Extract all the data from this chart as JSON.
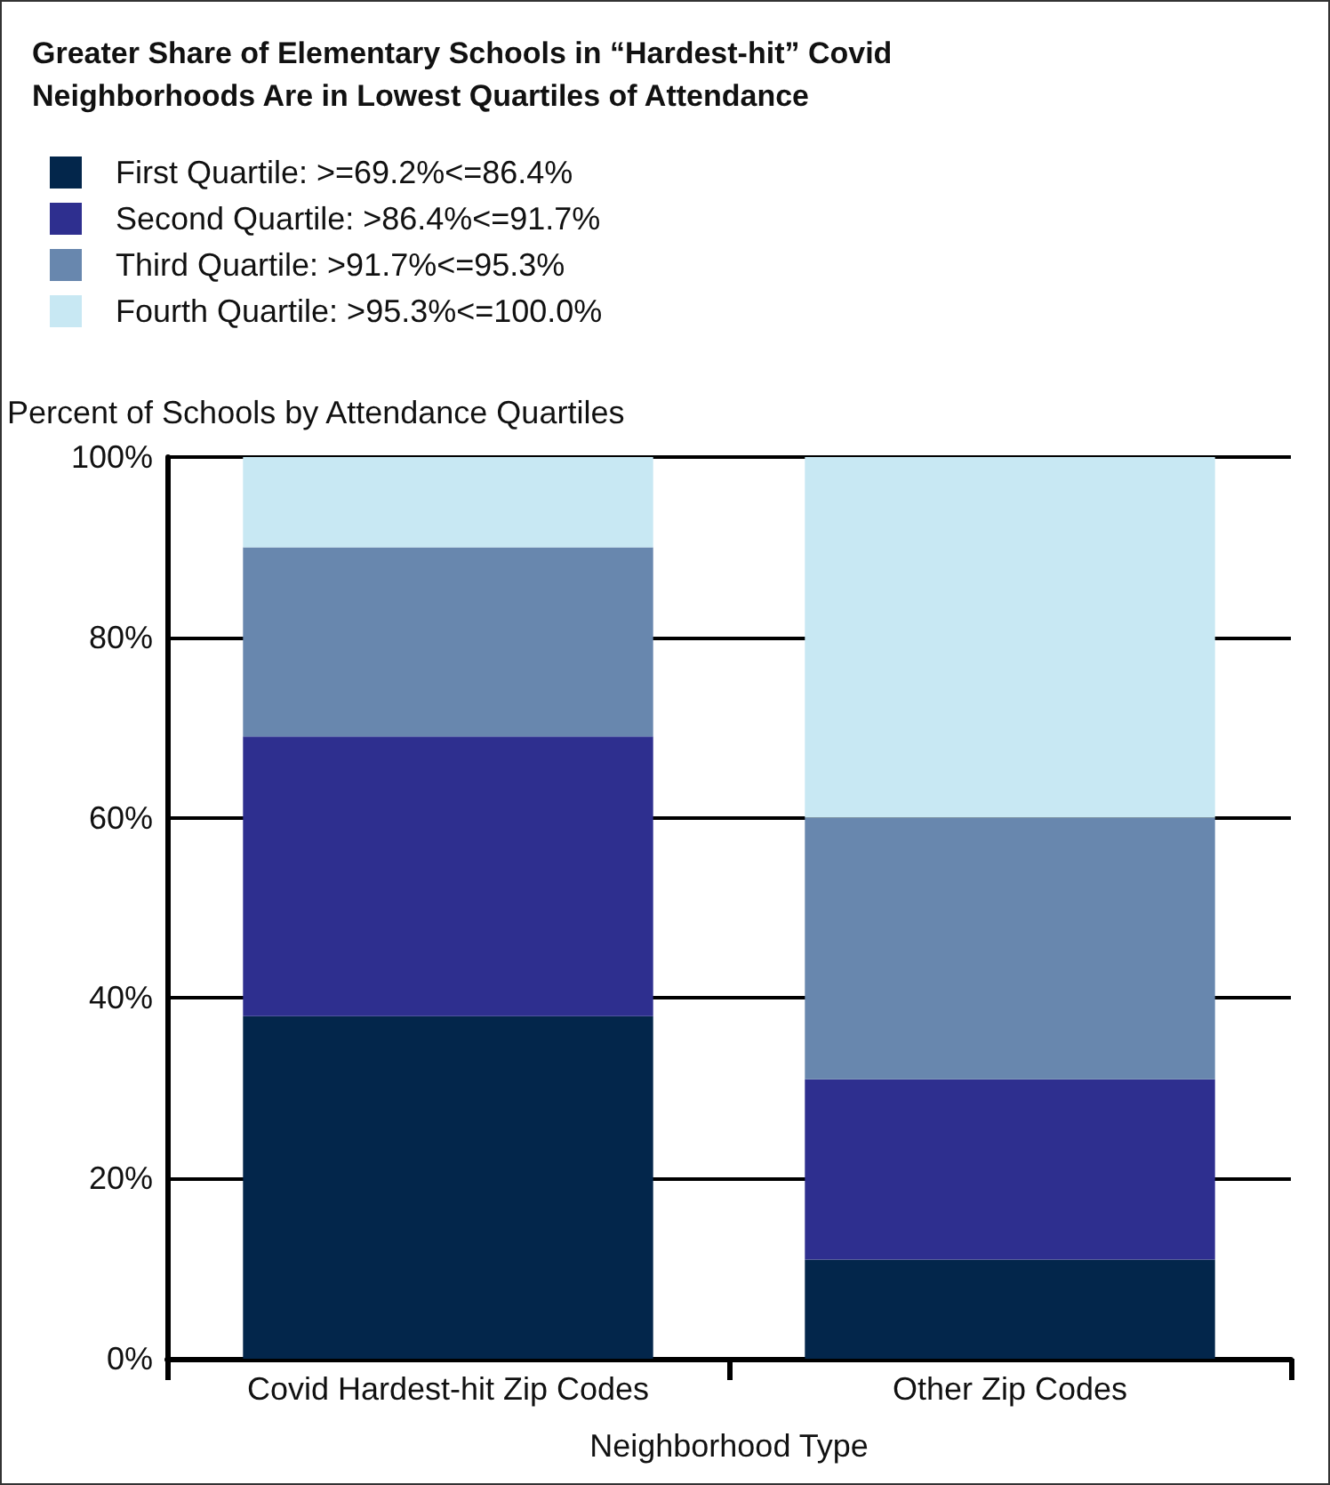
{
  "chart_data": {
    "type": "bar",
    "title": "Greater Share of Elementary Schools in “Hardest-hit” Covid\nNeighborhoods Are in Lowest Quartiles of Attendance",
    "xlabel": "Neighborhood Type",
    "ylabel": "Percent of Schools by Attendance Quartiles",
    "categories": [
      "Covid Hardest-hit Zip Codes",
      "Other Zip Codes"
    ],
    "stacked": true,
    "series": [
      {
        "name": "First Quartile: >=69.2%<=86.4%",
        "color": "#03264b",
        "values": [
          38,
          11
        ]
      },
      {
        "name": "Second Quartile: >86.4%<=91.7%",
        "color": "#2e2f8f",
        "values": [
          31,
          20
        ]
      },
      {
        "name": "Third Quartile: >91.7%<=95.3%",
        "color": "#6887ae",
        "values": [
          21,
          29
        ]
      },
      {
        "name": "Fourth Quartile: >95.3%<=100.0%",
        "color": "#c8e8f3",
        "values": [
          10,
          40
        ]
      }
    ],
    "ylim": [
      0,
      100
    ],
    "yticks": [
      {
        "value": 0,
        "label": "0%"
      },
      {
        "value": 20,
        "label": "20%"
      },
      {
        "value": 40,
        "label": "40%"
      },
      {
        "value": 60,
        "label": "60%"
      },
      {
        "value": 80,
        "label": "80%"
      },
      {
        "value": 100,
        "label": "100%"
      }
    ],
    "grid": "y",
    "legend": "top left"
  }
}
